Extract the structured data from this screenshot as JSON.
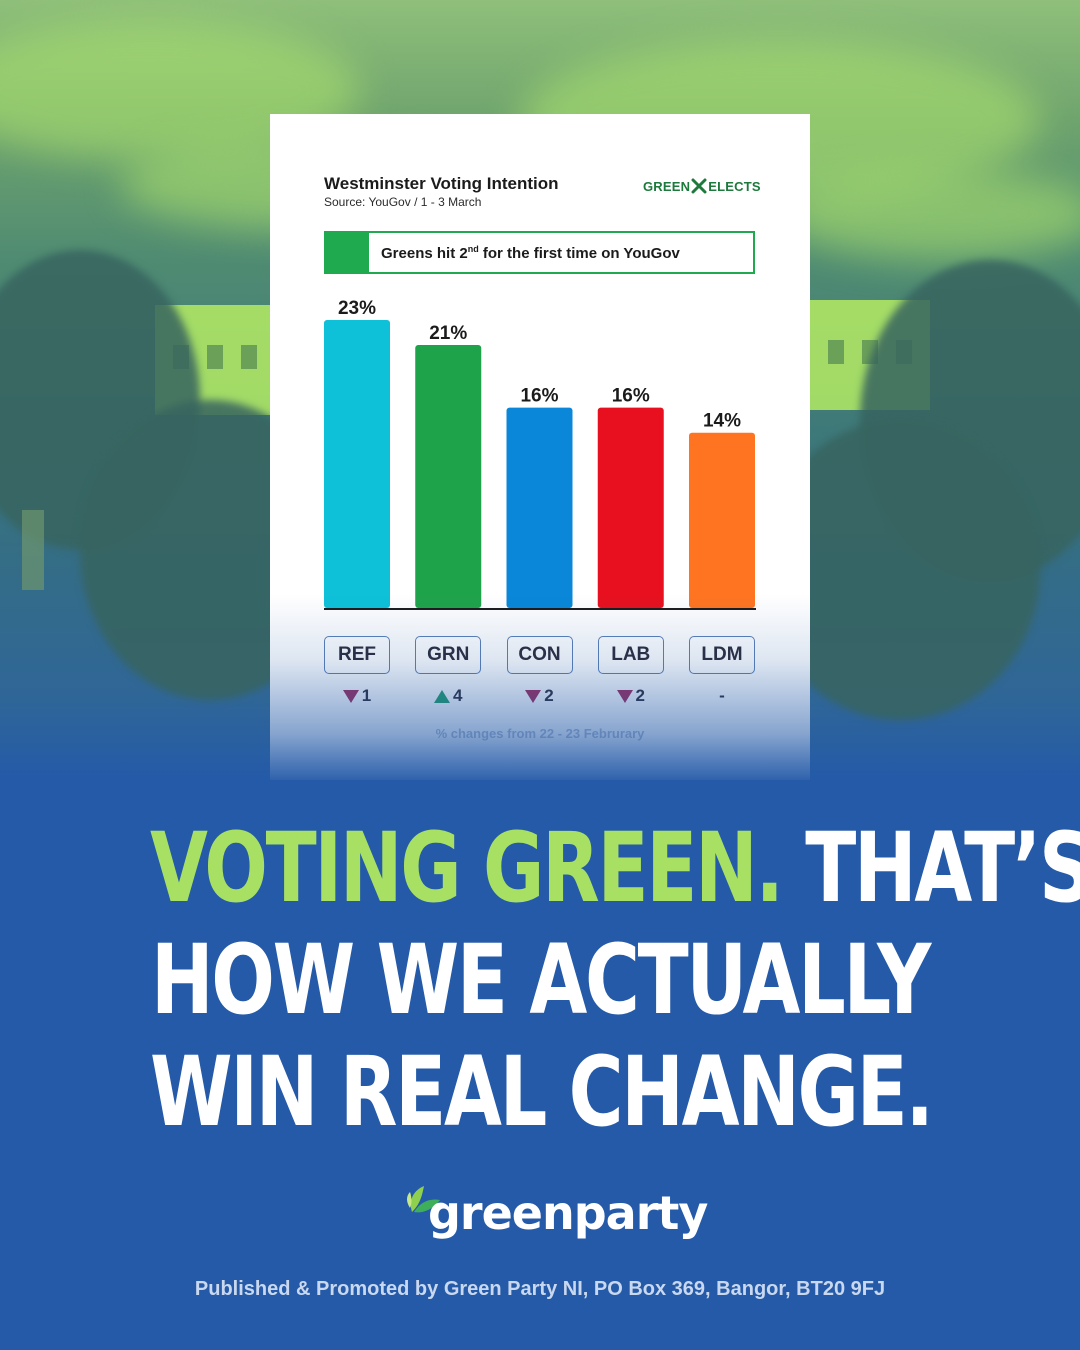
{
  "chart_data": {
    "type": "bar",
    "title": "Westminster Voting Intention",
    "subtitle": "Source: YouGov / 1 - 3 March",
    "categories": [
      "REF",
      "GRN",
      "CON",
      "LAB",
      "LDM"
    ],
    "values": [
      23,
      21,
      16,
      16,
      14
    ],
    "value_labels": [
      "23%",
      "21%",
      "16%",
      "16%",
      "14%"
    ],
    "colors": [
      "#0ec0d8",
      "#1fa34a",
      "#0a87d8",
      "#e8101e",
      "#ff7420"
    ],
    "changes": [
      {
        "direction": "down",
        "value": "1"
      },
      {
        "direction": "up",
        "value": "4"
      },
      {
        "direction": "down",
        "value": "2"
      },
      {
        "direction": "down",
        "value": "2"
      },
      {
        "direction": "none",
        "value": "-"
      }
    ],
    "ylim": [
      0,
      23
    ],
    "grid": false,
    "footnote": "% changes from 22 - 23 Februrary"
  },
  "card": {
    "brand_left": "GREEN",
    "brand_right": "ELECTS",
    "callout_text_before": "Greens hit 2",
    "callout_sup": "nd",
    "callout_text_after": " for the first time on YouGov"
  },
  "headline": {
    "line1_green": "VOTING GREEN.",
    "line1_white": " THAT’S",
    "line2": "HOW WE ACTUALLY",
    "line3": "WIN REAL CHANGE."
  },
  "logo": {
    "text": "greenparty"
  },
  "imprint": "Published & Promoted by Green Party NI, PO Box 369, Bangor, BT20 9FJ"
}
